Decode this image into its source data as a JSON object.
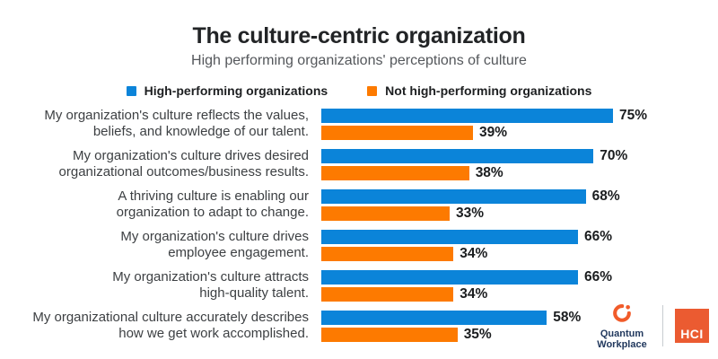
{
  "chart_data": {
    "type": "bar",
    "orientation": "horizontal",
    "title": "The culture-centric organization",
    "subtitle": "High performing organizations' perceptions of culture",
    "value_format": "percent",
    "xlim": [
      0,
      80
    ],
    "grid": false,
    "legend_position": "top",
    "categories": [
      "My organization's culture reflects the values, beliefs, and knowledge of our talent.",
      "My organization's culture drives desired organizational outcomes/business results.",
      "A thriving culture is enabling our organization to adapt to change.",
      "My organization's culture drives employee engagement.",
      "My organization's culture attracts high-quality talent.",
      "My organizational culture accurately describes how we get work accomplished."
    ],
    "category_lines": [
      [
        "My organization's culture reflects the values,",
        "beliefs, and knowledge of our talent."
      ],
      [
        "My organization's culture drives desired",
        "organizational outcomes/business results."
      ],
      [
        "A thriving culture is enabling our",
        "organization to adapt to change."
      ],
      [
        "My organization's culture drives",
        "employee engagement."
      ],
      [
        "My organization's culture attracts",
        "high-quality talent."
      ],
      [
        "My organizational culture accurately describes",
        "how we get work accomplished."
      ]
    ],
    "series": [
      {
        "name": "High-performing organizations",
        "color": "#0b84d9",
        "values": [
          75,
          70,
          68,
          66,
          66,
          58
        ]
      },
      {
        "name": "Not high-performing organizations",
        "color": "#fd7a00",
        "values": [
          39,
          38,
          33,
          34,
          34,
          35
        ]
      }
    ]
  },
  "footer": {
    "quantum_workplace": {
      "line1": "Quantum",
      "line2": "Workplace",
      "logo_color": "#f15b2a",
      "text_color": "#22395e"
    },
    "hci": {
      "label": "HCI",
      "color": "#eb5b31"
    }
  }
}
